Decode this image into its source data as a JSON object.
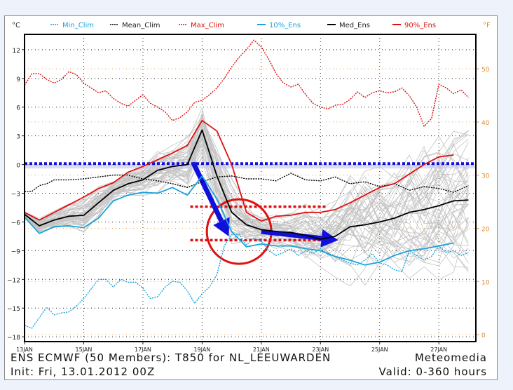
{
  "chart_data": {
    "type": "line",
    "title": "ENS ECMWF (50 Members): T850 for NL_LEEUWARDEN",
    "subtitle": "Init: Fri, 13.01.2012 00Z",
    "source": "Meteomedia",
    "valid": "Valid: 0-360 hours",
    "ylabel_left": "°C",
    "ylabel_right": "°F",
    "ylim": [
      -18.5,
      13.6
    ],
    "xlim_days": [
      0,
      15.25
    ],
    "y_ticks": [
      12,
      9,
      6,
      3,
      0,
      -3,
      -6,
      -9,
      -12,
      -15,
      -18
    ],
    "y_tick_labels": [
      "12",
      "9",
      "6",
      "3",
      "0",
      "−3",
      "−6",
      "−9",
      "−12",
      "−15",
      "−18"
    ],
    "y2_ticks_f": [
      50,
      40,
      30,
      20,
      10,
      0
    ],
    "x_tick_days": [
      0,
      2,
      4,
      6,
      8,
      10,
      12,
      14
    ],
    "x_tick_labels": [
      "13JAN",
      "15JAN",
      "17JAN",
      "19JAN",
      "21JAN",
      "23JAN",
      "25JAN",
      "27JAN"
    ],
    "grid": true,
    "legend": {
      "placement": "top",
      "entries": [
        {
          "label": "Min_Clim",
          "color": "#1aa3d9",
          "style": "dotted"
        },
        {
          "label": "Mean_Clim",
          "color": "#000000",
          "style": "dotted"
        },
        {
          "label": "Max_Clim",
          "color": "#e01010",
          "style": "dotted"
        },
        {
          "label": "10%_Ens",
          "color": "#1aa3d9",
          "style": "solid"
        },
        {
          "label": "Med_Ens",
          "color": "#000000",
          "style": "solid"
        },
        {
          "label": "90%_Ens",
          "color": "#e01010",
          "style": "solid"
        }
      ]
    },
    "series": [
      {
        "name": "Max_Clim",
        "color": "#e01010",
        "dash": true,
        "x": [
          0,
          0.25,
          0.5,
          0.75,
          1,
          1.25,
          1.5,
          1.75,
          2,
          2.25,
          2.5,
          2.75,
          3,
          3.25,
          3.5,
          3.75,
          4,
          4.25,
          4.5,
          4.75,
          5,
          5.25,
          5.5,
          5.75,
          6,
          6.25,
          6.5,
          6.75,
          7,
          7.25,
          7.5,
          7.75,
          8,
          8.25,
          8.5,
          8.75,
          9,
          9.25,
          9.5,
          9.75,
          10,
          10.25,
          10.5,
          10.75,
          11,
          11.25,
          11.5,
          11.75,
          12,
          12.25,
          12.5,
          12.75,
          13,
          13.25,
          13.5,
          13.75,
          14,
          14.25,
          14.5,
          14.75,
          15
        ],
        "y": [
          8.3,
          9.5,
          9.5,
          8.9,
          8.5,
          8.9,
          9.7,
          9.4,
          8.5,
          8.0,
          7.5,
          7.7,
          6.9,
          6.4,
          6.1,
          6.7,
          7.3,
          6.4,
          6.0,
          5.5,
          4.6,
          4.9,
          5.5,
          6.5,
          6.7,
          7.3,
          8.0,
          9.0,
          10.2,
          11.2,
          12.0,
          13.0,
          12.3,
          11.0,
          9.5,
          8.5,
          8.1,
          8.4,
          7.3,
          6.4,
          6.0,
          5.8,
          6.2,
          6.3,
          6.8,
          7.6,
          7.0,
          7.5,
          7.7,
          7.5,
          7.6,
          8.0,
          7.2,
          6.0,
          4.0,
          4.8,
          8.4,
          8.0,
          7.4,
          7.8,
          7.0
        ]
      },
      {
        "name": "Mean_Clim",
        "color": "#000000",
        "dash": true,
        "x": [
          0,
          0.25,
          0.5,
          0.75,
          1,
          1.5,
          2,
          2.5,
          3,
          3.5,
          4,
          4.5,
          5,
          5.5,
          6,
          6.5,
          7,
          7.5,
          8,
          8.5,
          9,
          9.5,
          10,
          10.5,
          11,
          11.5,
          12,
          12.5,
          13,
          13.5,
          14,
          14.5,
          15
        ],
        "y": [
          -2.8,
          -2.8,
          -2.2,
          -2.0,
          -1.6,
          -1.6,
          -1.5,
          -1.3,
          -1.1,
          -1.1,
          -1.5,
          -1.7,
          -2.0,
          -2.4,
          -1.8,
          -1.3,
          -1.2,
          -1.5,
          -1.5,
          -1.7,
          -0.9,
          -1.6,
          -1.7,
          -1.3,
          -2.0,
          -1.8,
          -2.3,
          -2.0,
          -2.7,
          -2.3,
          -2.5,
          -2.9,
          -2.2
        ]
      },
      {
        "name": "Min_Clim",
        "color": "#1aa3d9",
        "dash": true,
        "x": [
          0,
          0.25,
          0.5,
          0.75,
          1,
          1.25,
          1.5,
          1.75,
          2,
          2.25,
          2.5,
          2.75,
          3,
          3.25,
          3.5,
          3.75,
          4,
          4.25,
          4.5,
          4.75,
          5,
          5.25,
          5.5,
          5.75,
          6,
          6.25,
          6.5,
          6.75,
          7,
          7.25,
          7.5,
          7.75,
          8,
          8.25,
          8.5,
          8.75,
          9,
          9.25,
          9.5,
          9.75,
          10,
          10.25,
          10.5,
          10.75,
          11,
          11.25,
          11.5,
          11.75,
          12,
          12.25,
          12.5,
          12.75,
          13,
          13.25,
          13.5,
          13.75,
          14,
          14.25,
          14.5,
          14.75,
          15
        ],
        "y": [
          -16.8,
          -17.1,
          -16.0,
          -14.9,
          -15.7,
          -15.5,
          -15.4,
          -14.8,
          -14.0,
          -13.0,
          -12.0,
          -12.0,
          -12.8,
          -12.0,
          -12.3,
          -12.3,
          -12.9,
          -14.0,
          -13.8,
          -12.8,
          -12.2,
          -12.3,
          -13.2,
          -14.5,
          -13.5,
          -12.8,
          -11.5,
          -8.5,
          -7.3,
          -7.3,
          -8.4,
          -7.7,
          -8.0,
          -9.0,
          -9.5,
          -9.2,
          -8.8,
          -9.5,
          -9.0,
          -9.3,
          -8.8,
          -9.4,
          -9.6,
          -10.0,
          -10.3,
          -10.5,
          -10.0,
          -9.3,
          -10.3,
          -10.5,
          -11.0,
          -11.2,
          -9.0,
          -9.5,
          -10.0,
          -9.6,
          -8.5,
          -9.2,
          -9.0,
          -9.5,
          -9.2
        ]
      },
      {
        "name": "90%_Ens",
        "color": "#e01010",
        "dash": false,
        "x": [
          0,
          0.5,
          1,
          1.5,
          2,
          2.5,
          3,
          3.5,
          4,
          4.5,
          5,
          5.5,
          6,
          6.5,
          7,
          7.5,
          8,
          8.5,
          9,
          9.5,
          10,
          10.5,
          11,
          11.5,
          12,
          12.5,
          13,
          13.5,
          14,
          14.5
        ],
        "y": [
          -5.0,
          -5.8,
          -5.0,
          -4.2,
          -3.4,
          -2.5,
          -1.9,
          -0.8,
          -0.2,
          0.5,
          1.2,
          2.0,
          4.6,
          3.5,
          0.0,
          -5.0,
          -5.9,
          -5.4,
          -5.3,
          -5.0,
          -5.0,
          -4.7,
          -4.0,
          -3.2,
          -2.4,
          -2.0,
          -1.0,
          0.0,
          0.8,
          1.0
        ]
      },
      {
        "name": "Med_Ens",
        "color": "#000000",
        "dash": false,
        "x": [
          0,
          0.5,
          1,
          1.5,
          2,
          2.5,
          3,
          3.5,
          4,
          4.5,
          5,
          5.5,
          6,
          6.5,
          7,
          7.5,
          8,
          8.5,
          9,
          9.5,
          10,
          10.5,
          11,
          11.5,
          12,
          12.5,
          13,
          13.5,
          14,
          14.5,
          15
        ],
        "y": [
          -5.2,
          -6.4,
          -5.8,
          -5.4,
          -5.3,
          -4.0,
          -2.7,
          -2.0,
          -1.6,
          -0.6,
          -0.2,
          0.0,
          3.6,
          -1.2,
          -5.0,
          -6.3,
          -6.8,
          -7.0,
          -7.1,
          -7.4,
          -7.8,
          -7.5,
          -6.5,
          -6.3,
          -6.0,
          -5.6,
          -5.0,
          -4.7,
          -4.3,
          -3.8,
          -3.7
        ]
      },
      {
        "name": "10%_Ens",
        "color": "#1aa3d9",
        "dash": false,
        "x": [
          0,
          0.5,
          1,
          1.5,
          2,
          2.5,
          3,
          3.5,
          4,
          4.5,
          5,
          5.5,
          6,
          6.5,
          7,
          7.5,
          8,
          8.5,
          9,
          9.5,
          10,
          10.5,
          11,
          11.5,
          12,
          12.5,
          13,
          13.5,
          14,
          14.5
        ],
        "y": [
          -5.5,
          -7.2,
          -6.5,
          -6.4,
          -6.6,
          -5.6,
          -3.8,
          -3.2,
          -2.9,
          -3.0,
          -2.4,
          -3.2,
          -1.2,
          -3.6,
          -7.0,
          -8.6,
          -8.3,
          -8.5,
          -8.5,
          -8.8,
          -9.0,
          -9.6,
          -10.0,
          -10.5,
          -10.2,
          -9.5,
          -9.0,
          -8.8,
          -8.5,
          -8.2
        ]
      }
    ],
    "ensemble_members": 50,
    "annotations": [
      {
        "type": "line",
        "label": "0 °C reference",
        "color": "#1010dd",
        "y": 0.1,
        "x_range": [
          0,
          15.25
        ],
        "style": "dotted-thick"
      },
      {
        "type": "circle",
        "color": "#e01010",
        "x": 7.25,
        "y": -7.0
      },
      {
        "type": "line",
        "color": "#e01010",
        "style": "dotted-thick",
        "y": -4.4,
        "x_range": [
          5.6,
          10.2
        ]
      },
      {
        "type": "line",
        "color": "#e01010",
        "style": "dotted-thick",
        "y": -7.9,
        "x_range": [
          5.6,
          10.2
        ]
      },
      {
        "type": "arrow",
        "color": "#1010dd",
        "from": [
          5.7,
          0.2
        ],
        "to": [
          6.9,
          -7.5
        ]
      },
      {
        "type": "arrow",
        "color": "#1010dd",
        "from": [
          8.0,
          -7.0
        ],
        "to": [
          10.6,
          -7.9
        ]
      }
    ]
  }
}
